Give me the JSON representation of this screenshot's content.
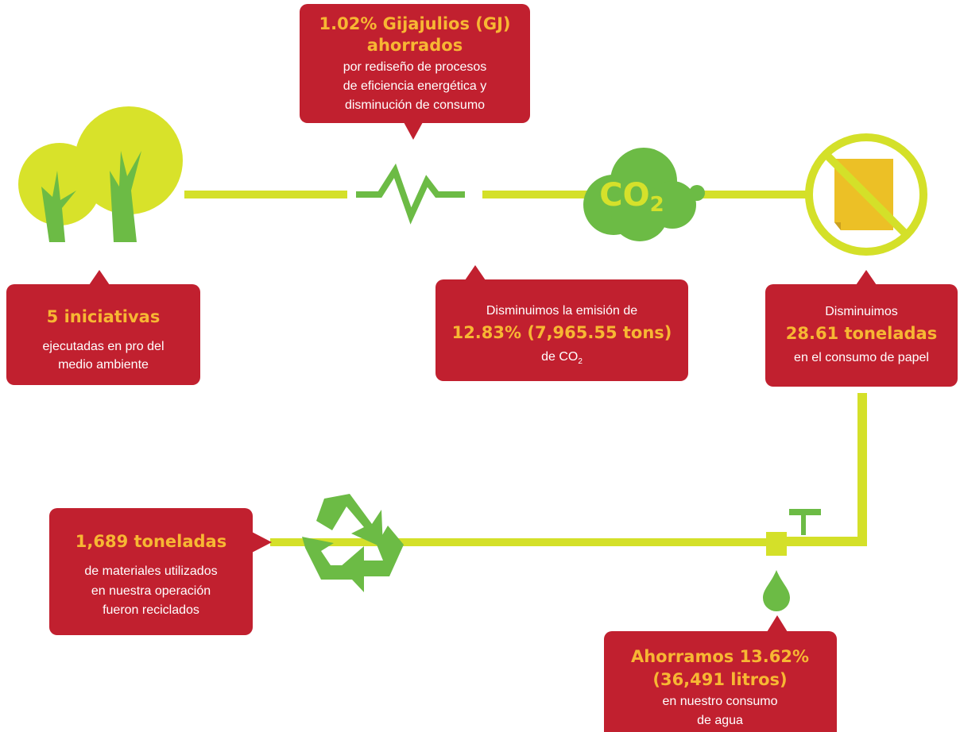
{
  "energy": {
    "highlight": [
      "1.02% Gijajulios (GJ)",
      "ahorrados"
    ],
    "body": [
      "por rediseño de procesos",
      "de eficiencia energética y",
      "disminución de consumo"
    ]
  },
  "initiatives": {
    "highlight": [
      "5 iniciativas"
    ],
    "body": [
      "ejecutadas en pro del",
      "medio ambiente"
    ]
  },
  "co2_icon": {
    "text": "CO",
    "sub": "2"
  },
  "emissions": {
    "intro": "Disminuimos la emisión de",
    "highlight": "12.83% (7,965.55 tons)",
    "body": "de CO",
    "body_sub": "2"
  },
  "paper": {
    "intro": "Disminuimos",
    "highlight": "28.61 toneladas",
    "body": "en el consumo de papel"
  },
  "recycling": {
    "highlight": "1,689 toneladas",
    "body": [
      "de materiales utilizados",
      "en nuestra operación",
      "fueron reciclados"
    ]
  },
  "water": {
    "highlight": [
      "Ahorramos 13.62%",
      "(36,491 litros)"
    ],
    "body": [
      "en nuestro consumo",
      "de agua"
    ]
  }
}
